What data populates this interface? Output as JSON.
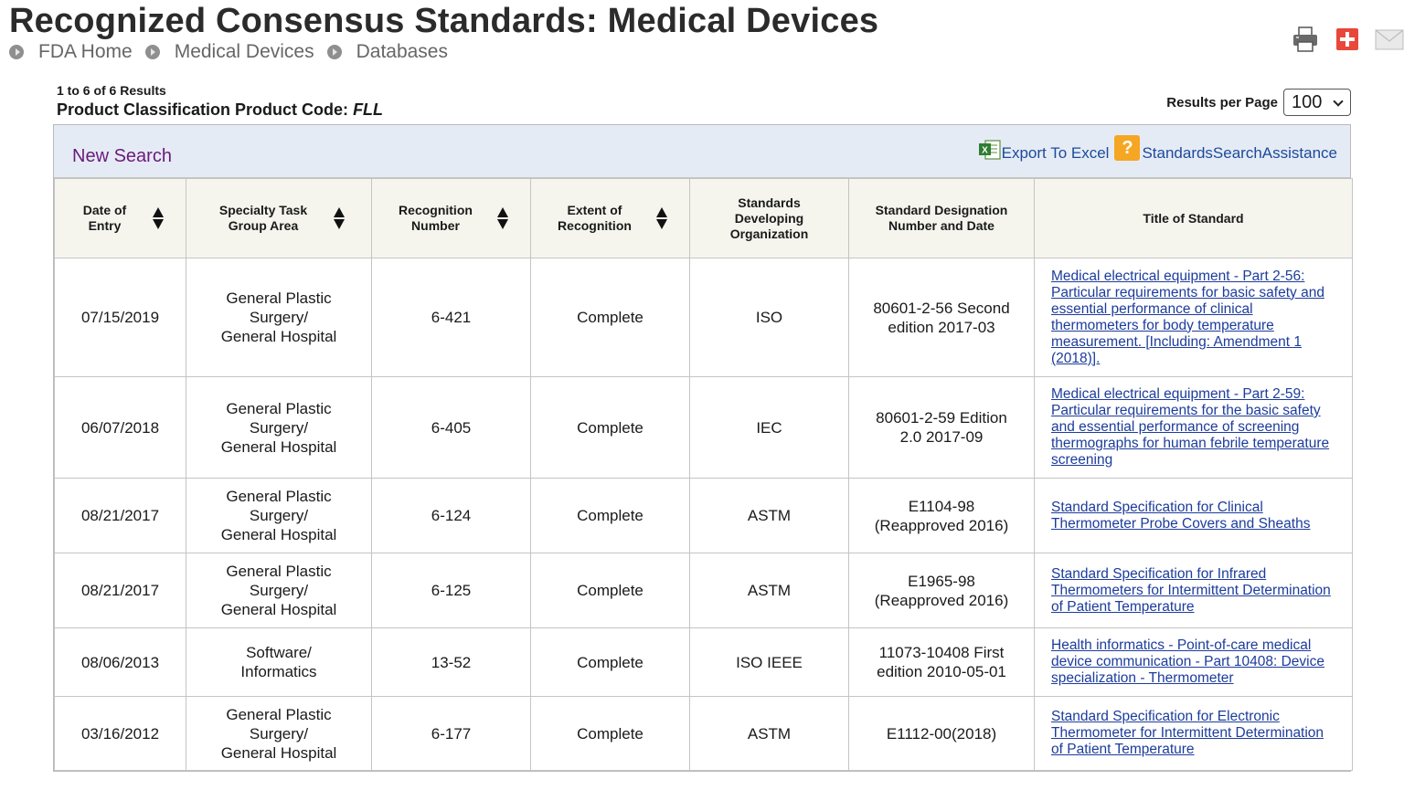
{
  "page_title": "Recognized Consensus Standards: Medical Devices",
  "breadcrumb": [
    "FDA Home",
    "Medical Devices",
    "Databases"
  ],
  "tools": {
    "print": "print-icon",
    "add": "plus-icon",
    "email": "mail-icon"
  },
  "results_count": "1 to 6 of 6 Results",
  "product_code_label": "Product Classification Product Code:",
  "product_code": "FLL",
  "results_per_page_label": "Results per Page",
  "results_per_page_value": "100",
  "new_search": "New Search",
  "export_label": "Export To Excel",
  "assist_label": "StandardsSearchAssistance",
  "columns": [
    "Date of Entry",
    "Specialty Task Group Area",
    "Recognition Number",
    "Extent of Recognition",
    "Standards Developing Organization",
    "Standard Designation Number and Date",
    "Title of Standard"
  ],
  "rows": [
    {
      "date": "07/15/2019",
      "area_line1": "General Plastic Surgery/",
      "area_line2": "General Hospital",
      "recognition": "6-421",
      "extent": "Complete",
      "org": "ISO",
      "designation": "80601-2-56 Second edition 2017-03",
      "title": "Medical electrical equipment - Part 2-56: Particular requirements for basic safety and essential performance of clinical thermometers for body temperature measurement. [Including: Amendment 1 (2018)]."
    },
    {
      "date": "06/07/2018",
      "area_line1": "General Plastic Surgery/",
      "area_line2": "General Hospital",
      "recognition": "6-405",
      "extent": "Complete",
      "org": "IEC",
      "designation": "80601-2-59 Edition 2.0 2017-09",
      "title": "Medical electrical equipment - Part 2-59: Particular requirements for the basic safety and essential performance of screening thermographs for human febrile temperature screening"
    },
    {
      "date": "08/21/2017",
      "area_line1": "General Plastic Surgery/",
      "area_line2": "General Hospital",
      "recognition": "6-124",
      "extent": "Complete",
      "org": "ASTM",
      "designation": "E1104-98 (Reapproved 2016)",
      "title": "Standard Specification for Clinical Thermometer Probe Covers and Sheaths"
    },
    {
      "date": "08/21/2017",
      "area_line1": "General Plastic Surgery/",
      "area_line2": "General Hospital",
      "recognition": "6-125",
      "extent": "Complete",
      "org": "ASTM",
      "designation": "E1965-98 (Reapproved 2016)",
      "title": "Standard Specification for Infrared Thermometers for Intermittent Determination of Patient Temperature"
    },
    {
      "date": "08/06/2013",
      "area_line1": "Software/",
      "area_line2": "Informatics",
      "recognition": "13-52",
      "extent": "Complete",
      "org": "ISO IEEE",
      "designation": "11073-10408 First edition 2010-05-01",
      "title": "Health informatics - Point-of-care medical device communication - Part 10408: Device specialization - Thermometer"
    },
    {
      "date": "03/16/2012",
      "area_line1": "General Plastic Surgery/",
      "area_line2": "General Hospital",
      "recognition": "6-177",
      "extent": "Complete",
      "org": "ASTM",
      "designation": "E1112-00(2018)",
      "title": "Standard Specification for Electronic Thermometer for Intermittent Determination of Patient Temperature"
    }
  ]
}
